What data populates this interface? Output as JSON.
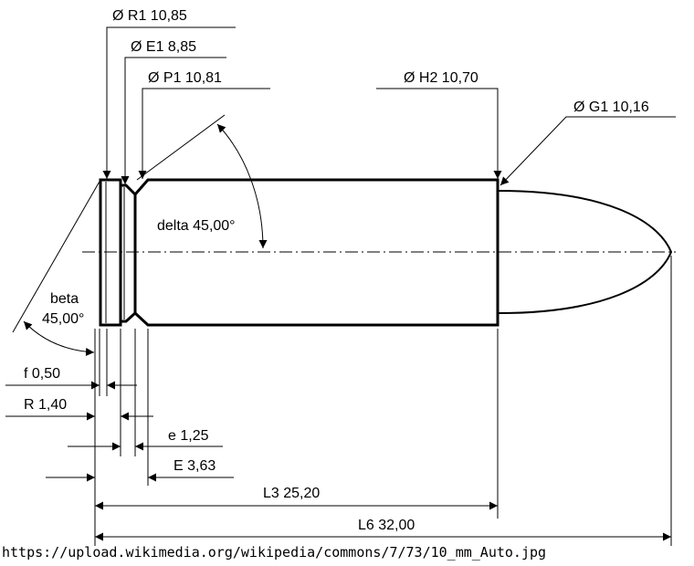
{
  "labels": {
    "r1": "Ø R1  10,85",
    "e1": "Ø E1  8,85",
    "p1": "Ø P1  10,81",
    "h2": "Ø H2  10,70",
    "g1": "Ø G1  10,16",
    "delta": "delta  45,00°",
    "beta_name": "beta",
    "beta_value": "45,00°",
    "f": "f  0,50",
    "R": "R  1,40",
    "e": "e  1,25",
    "E": "E  3,63",
    "l3": "L3  25,20",
    "l6": "L6  32,00"
  },
  "source_url": "https://upload.wikimedia.org/wikipedia/commons/7/73/10_mm_Auto.jpg"
}
